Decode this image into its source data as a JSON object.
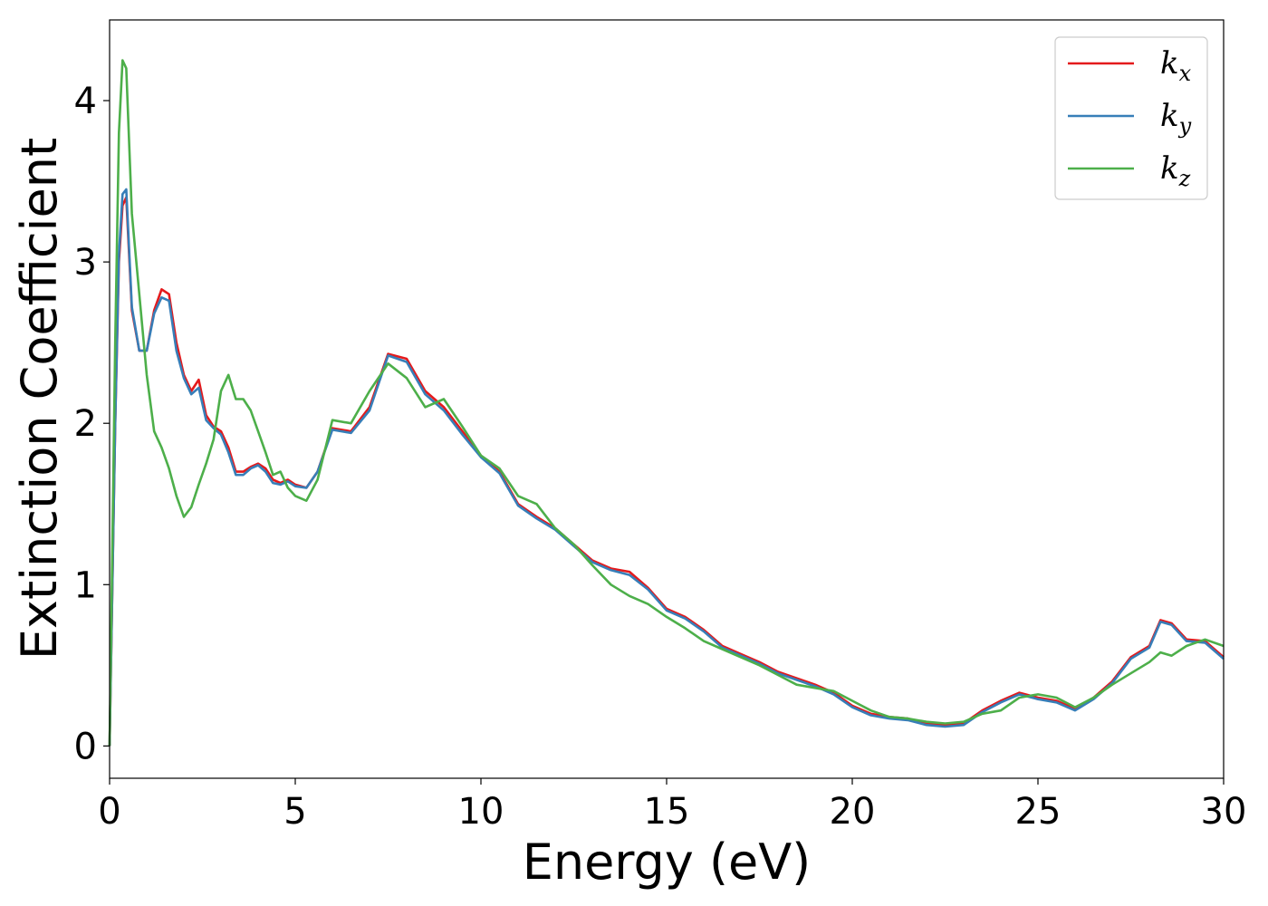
{
  "chart_data": {
    "type": "line",
    "title": "",
    "xlabel": "Energy (eV)",
    "ylabel": "Extinction Coefficient",
    "xlim": [
      0,
      30
    ],
    "ylim": [
      -0.2,
      4.5
    ],
    "xticks": [
      0,
      5,
      10,
      15,
      20,
      25,
      30
    ],
    "yticks": [
      0,
      1,
      2,
      3,
      4
    ],
    "grid": false,
    "legend_position": "top-right",
    "series": [
      {
        "name": "k",
        "subscript": "x",
        "color": "#e41a1c",
        "x": [
          0,
          0.15,
          0.25,
          0.35,
          0.45,
          0.6,
          0.8,
          1.0,
          1.2,
          1.4,
          1.6,
          1.8,
          2.0,
          2.2,
          2.4,
          2.6,
          2.8,
          3.0,
          3.2,
          3.4,
          3.6,
          3.8,
          4.0,
          4.2,
          4.4,
          4.6,
          4.8,
          5.0,
          5.3,
          5.6,
          6.0,
          6.5,
          7.0,
          7.5,
          8.0,
          8.5,
          9.0,
          9.5,
          10.0,
          10.5,
          11.0,
          11.5,
          12.0,
          12.5,
          13.0,
          13.5,
          14.0,
          14.5,
          15.0,
          15.5,
          16.0,
          16.5,
          17.0,
          17.5,
          18.0,
          18.5,
          19.0,
          19.5,
          20.0,
          20.5,
          21.0,
          21.5,
          22.0,
          22.5,
          23.0,
          23.5,
          24.0,
          24.5,
          25.0,
          25.5,
          26.0,
          26.5,
          27.0,
          27.5,
          28.0,
          28.3,
          28.6,
          29.0,
          29.5,
          30.0
        ],
        "y": [
          0.0,
          2.0,
          3.0,
          3.35,
          3.4,
          2.7,
          2.45,
          2.45,
          2.7,
          2.83,
          2.8,
          2.5,
          2.3,
          2.2,
          2.27,
          2.05,
          1.98,
          1.95,
          1.85,
          1.7,
          1.7,
          1.73,
          1.75,
          1.72,
          1.65,
          1.63,
          1.65,
          1.62,
          1.6,
          1.7,
          1.97,
          1.95,
          2.1,
          2.43,
          2.4,
          2.2,
          2.1,
          1.95,
          1.8,
          1.7,
          1.5,
          1.42,
          1.35,
          1.25,
          1.15,
          1.1,
          1.08,
          0.98,
          0.85,
          0.8,
          0.72,
          0.62,
          0.57,
          0.52,
          0.46,
          0.42,
          0.38,
          0.33,
          0.25,
          0.2,
          0.18,
          0.17,
          0.14,
          0.13,
          0.14,
          0.22,
          0.28,
          0.33,
          0.3,
          0.28,
          0.23,
          0.3,
          0.4,
          0.55,
          0.62,
          0.78,
          0.76,
          0.66,
          0.65,
          0.55
        ]
      },
      {
        "name": "k",
        "subscript": "y",
        "color": "#377eb8",
        "x": [
          0,
          0.15,
          0.25,
          0.35,
          0.45,
          0.6,
          0.8,
          1.0,
          1.2,
          1.4,
          1.6,
          1.8,
          2.0,
          2.2,
          2.4,
          2.6,
          2.8,
          3.0,
          3.2,
          3.4,
          3.6,
          3.8,
          4.0,
          4.2,
          4.4,
          4.6,
          4.8,
          5.0,
          5.3,
          5.6,
          6.0,
          6.5,
          7.0,
          7.5,
          8.0,
          8.5,
          9.0,
          9.5,
          10.0,
          10.5,
          11.0,
          11.5,
          12.0,
          12.5,
          13.0,
          13.5,
          14.0,
          14.5,
          15.0,
          15.5,
          16.0,
          16.5,
          17.0,
          17.5,
          18.0,
          18.5,
          19.0,
          19.5,
          20.0,
          20.5,
          21.0,
          21.5,
          22.0,
          22.5,
          23.0,
          23.5,
          24.0,
          24.5,
          25.0,
          25.5,
          26.0,
          26.5,
          27.0,
          27.5,
          28.0,
          28.3,
          28.6,
          29.0,
          29.5,
          30.0
        ],
        "y": [
          0.0,
          2.0,
          3.05,
          3.42,
          3.45,
          2.72,
          2.45,
          2.45,
          2.68,
          2.78,
          2.76,
          2.45,
          2.28,
          2.18,
          2.22,
          2.02,
          1.97,
          1.93,
          1.82,
          1.68,
          1.68,
          1.72,
          1.74,
          1.7,
          1.63,
          1.62,
          1.64,
          1.61,
          1.6,
          1.7,
          1.96,
          1.94,
          2.08,
          2.42,
          2.38,
          2.18,
          2.08,
          1.93,
          1.79,
          1.69,
          1.49,
          1.41,
          1.34,
          1.24,
          1.14,
          1.09,
          1.06,
          0.97,
          0.84,
          0.79,
          0.71,
          0.61,
          0.56,
          0.51,
          0.45,
          0.41,
          0.37,
          0.32,
          0.24,
          0.19,
          0.17,
          0.16,
          0.13,
          0.12,
          0.13,
          0.21,
          0.27,
          0.32,
          0.29,
          0.27,
          0.22,
          0.29,
          0.39,
          0.54,
          0.61,
          0.77,
          0.75,
          0.65,
          0.64,
          0.54
        ]
      },
      {
        "name": "k",
        "subscript": "z",
        "color": "#4daf4a",
        "x": [
          0,
          0.15,
          0.25,
          0.35,
          0.45,
          0.6,
          0.8,
          1.0,
          1.2,
          1.4,
          1.6,
          1.8,
          2.0,
          2.2,
          2.4,
          2.6,
          2.8,
          3.0,
          3.2,
          3.4,
          3.6,
          3.8,
          4.0,
          4.2,
          4.4,
          4.6,
          4.8,
          5.0,
          5.3,
          5.6,
          6.0,
          6.5,
          7.0,
          7.5,
          8.0,
          8.5,
          9.0,
          9.5,
          10.0,
          10.5,
          11.0,
          11.5,
          12.0,
          12.5,
          13.0,
          13.5,
          14.0,
          14.5,
          15.0,
          15.5,
          16.0,
          16.5,
          17.0,
          17.5,
          18.0,
          18.5,
          19.0,
          19.5,
          20.0,
          20.5,
          21.0,
          21.5,
          22.0,
          22.5,
          23.0,
          23.5,
          24.0,
          24.5,
          25.0,
          25.5,
          26.0,
          26.5,
          27.0,
          27.5,
          28.0,
          28.3,
          28.6,
          29.0,
          29.5,
          30.0
        ],
        "y": [
          0.0,
          2.5,
          3.8,
          4.25,
          4.2,
          3.3,
          2.8,
          2.3,
          1.95,
          1.85,
          1.72,
          1.55,
          1.42,
          1.48,
          1.62,
          1.75,
          1.9,
          2.2,
          2.3,
          2.15,
          2.15,
          2.08,
          1.95,
          1.82,
          1.68,
          1.7,
          1.6,
          1.55,
          1.52,
          1.65,
          2.02,
          2.0,
          2.2,
          2.37,
          2.28,
          2.1,
          2.15,
          1.98,
          1.8,
          1.72,
          1.55,
          1.5,
          1.35,
          1.25,
          1.12,
          1.0,
          0.93,
          0.88,
          0.8,
          0.73,
          0.65,
          0.6,
          0.55,
          0.5,
          0.44,
          0.38,
          0.36,
          0.34,
          0.28,
          0.22,
          0.18,
          0.17,
          0.15,
          0.14,
          0.15,
          0.2,
          0.22,
          0.3,
          0.32,
          0.3,
          0.24,
          0.3,
          0.38,
          0.45,
          0.52,
          0.58,
          0.56,
          0.62,
          0.66,
          0.62
        ]
      }
    ]
  }
}
